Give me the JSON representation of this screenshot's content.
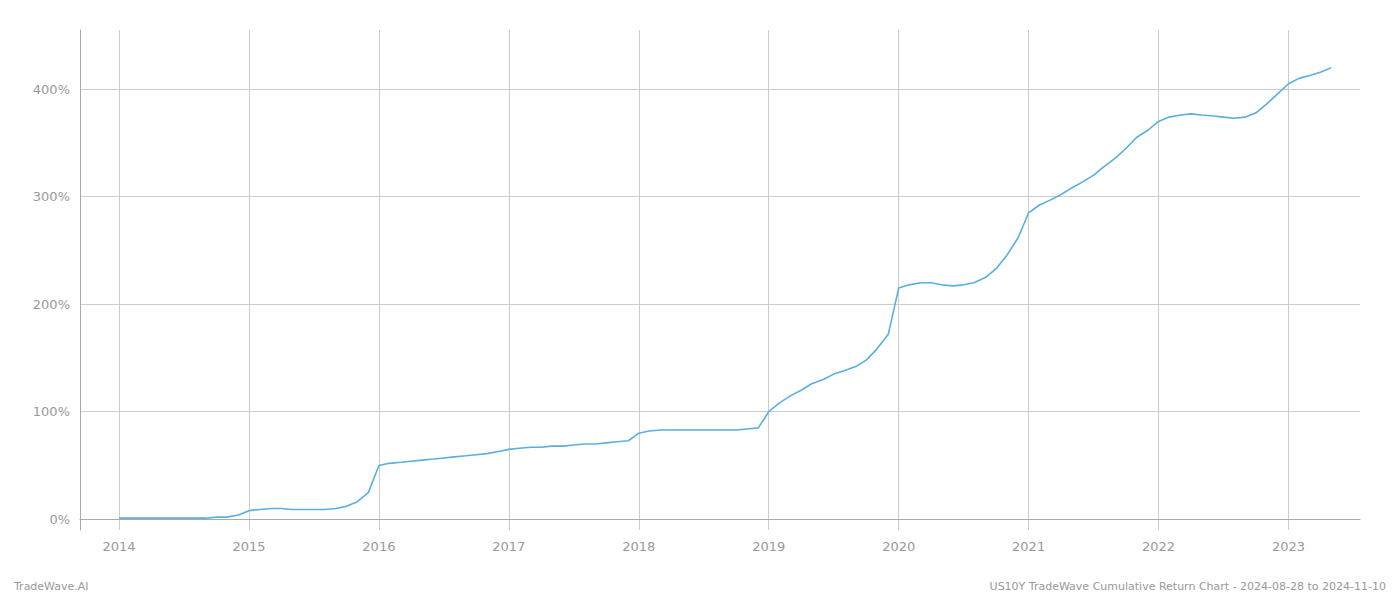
{
  "chart_data": {
    "type": "line",
    "annotations": [
      "TradeWave.AI",
      "US10Y TradeWave Cumulative Return Chart - 2024-08-28 to 2024-11-10"
    ],
    "x": [
      2014.0,
      2014.08,
      2014.17,
      2014.25,
      2014.33,
      2014.42,
      2014.5,
      2014.58,
      2014.67,
      2014.75,
      2014.83,
      2014.92,
      2015.0,
      2015.08,
      2015.17,
      2015.25,
      2015.33,
      2015.42,
      2015.5,
      2015.58,
      2015.67,
      2015.75,
      2015.83,
      2015.92,
      2016.0,
      2016.08,
      2016.17,
      2016.25,
      2016.33,
      2016.42,
      2016.5,
      2016.58,
      2016.67,
      2016.75,
      2016.83,
      2016.92,
      2017.0,
      2017.08,
      2017.17,
      2017.25,
      2017.33,
      2017.42,
      2017.5,
      2017.58,
      2017.67,
      2017.75,
      2017.83,
      2017.92,
      2018.0,
      2018.08,
      2018.17,
      2018.25,
      2018.33,
      2018.42,
      2018.5,
      2018.58,
      2018.67,
      2018.75,
      2018.83,
      2018.92,
      2019.0,
      2019.08,
      2019.17,
      2019.25,
      2019.33,
      2019.42,
      2019.5,
      2019.58,
      2019.67,
      2019.75,
      2019.83,
      2019.92,
      2020.0,
      2020.08,
      2020.17,
      2020.25,
      2020.33,
      2020.42,
      2020.5,
      2020.58,
      2020.67,
      2020.75,
      2020.83,
      2020.92,
      2021.0,
      2021.08,
      2021.17,
      2021.25,
      2021.33,
      2021.42,
      2021.5,
      2021.58,
      2021.67,
      2021.75,
      2021.83,
      2021.92,
      2022.0,
      2022.08,
      2022.17,
      2022.25,
      2022.33,
      2022.42,
      2022.5,
      2022.58,
      2022.67,
      2022.75,
      2022.83,
      2022.92,
      2023.0,
      2023.08,
      2023.17,
      2023.25,
      2023.33
    ],
    "values": [
      1,
      1,
      1,
      1,
      1,
      1,
      1,
      1,
      1,
      2,
      2,
      4,
      8,
      9,
      10,
      10,
      9,
      9,
      9,
      9,
      10,
      12,
      16,
      25,
      50,
      52,
      53,
      54,
      55,
      56,
      57,
      58,
      59,
      60,
      61,
      63,
      65,
      66,
      67,
      67,
      68,
      68,
      69,
      70,
      70,
      71,
      72,
      73,
      80,
      82,
      83,
      83,
      83,
      83,
      83,
      83,
      83,
      83,
      84,
      85,
      100,
      108,
      115,
      120,
      126,
      130,
      135,
      138,
      142,
      148,
      158,
      172,
      215,
      218,
      220,
      220,
      218,
      217,
      218,
      220,
      225,
      233,
      245,
      262,
      285,
      292,
      297,
      302,
      308,
      314,
      320,
      328,
      336,
      345,
      355,
      362,
      370,
      374,
      376,
      377,
      376,
      375,
      374,
      373,
      374,
      378,
      386,
      396,
      405,
      410,
      413,
      416,
      420
    ],
    "color": "#5aaee0",
    "xlim": [
      2013.7,
      2023.55
    ],
    "ylim": [
      -10,
      455
    ],
    "xticks": [
      2014,
      2015,
      2016,
      2017,
      2018,
      2019,
      2020,
      2021,
      2022,
      2023
    ],
    "yticks": [
      {
        "value": 0,
        "label": "0%"
      },
      {
        "value": 100,
        "label": "100%"
      },
      {
        "value": 200,
        "label": "200%"
      },
      {
        "value": 300,
        "label": "300%"
      },
      {
        "value": 400,
        "label": "400%"
      }
    ],
    "grid": true
  }
}
